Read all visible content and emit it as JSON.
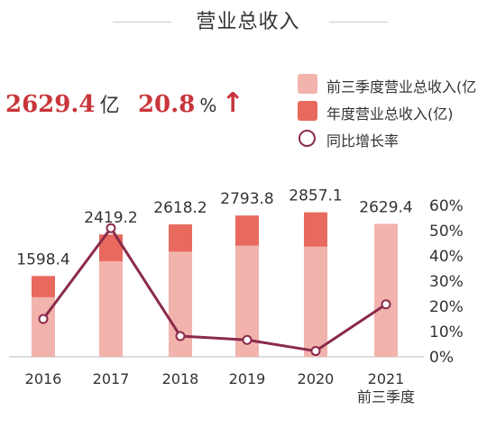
{
  "title": "营业总收入",
  "headline": {
    "value": "2629.4",
    "value_unit": "亿",
    "growth": "20.8",
    "growth_unit": "%",
    "arrow": "↑"
  },
  "legend": [
    {
      "label": "前三季度营业总收入(亿",
      "color": "#f2b3ad",
      "kind": "box"
    },
    {
      "label": "年度营业总收入(亿)",
      "color": "#e8695e",
      "kind": "box"
    },
    {
      "label": "同比增长率",
      "color": "#8b2a4a",
      "kind": "circle"
    }
  ],
  "chart_data": {
    "type": "bar",
    "categories": [
      "2016",
      "2017",
      "2018",
      "2019",
      "2020",
      "2021\n前三季度"
    ],
    "series": [
      {
        "name": "前三季度营业总收入(亿",
        "type": "bar",
        "color": "#f2b3ad",
        "values": [
          1180,
          1890,
          2080,
          2200,
          2180,
          2629.4
        ]
      },
      {
        "name": "年度营业总收入(亿)",
        "type": "bar",
        "color": "#e8695e",
        "values": [
          1598.4,
          2419.2,
          2618.2,
          2793.8,
          2857.1,
          null
        ]
      },
      {
        "name": "同比增长率",
        "type": "line",
        "axis": "right",
        "color": "#8b2a4a",
        "values": [
          15,
          51,
          8.2,
          6.7,
          2.3,
          20.8
        ]
      }
    ],
    "bar_labels": [
      "1598.4",
      "2419.2",
      "2618.2",
      "2793.8",
      "2857.1",
      "2629.4"
    ],
    "y2_ticks": [
      "0%",
      "10%",
      "20%",
      "30%",
      "40%",
      "50%",
      "60%"
    ],
    "ylim": [
      0,
      3100
    ],
    "y2lim": [
      0,
      60
    ]
  }
}
